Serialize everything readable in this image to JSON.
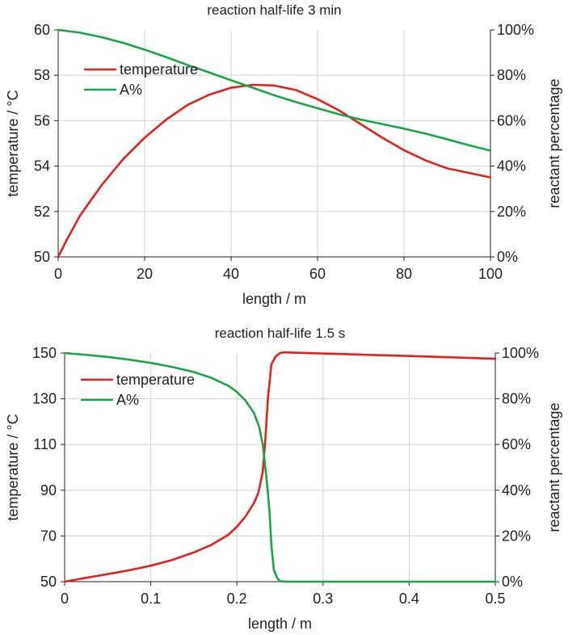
{
  "chart_data": [
    {
      "type": "line",
      "title": "reaction half-life 3 min",
      "xlabel": "length / m",
      "ylabel": "temperature / °C",
      "y2label": "reactant percentage",
      "xlim": [
        0,
        100
      ],
      "ylim": [
        50,
        60
      ],
      "y2lim": [
        0,
        100
      ],
      "xticks": [
        "0",
        "20",
        "40",
        "60",
        "80",
        "100"
      ],
      "yticks": [
        "50",
        "52",
        "54",
        "56",
        "58",
        "60"
      ],
      "y2ticks": [
        "0%",
        "20%",
        "40%",
        "60%",
        "80%",
        "100%"
      ],
      "xtick_values": [
        0,
        20,
        40,
        60,
        80,
        100
      ],
      "ytick_values": [
        50,
        52,
        54,
        56,
        58,
        60
      ],
      "y2tick_values": [
        0,
        20,
        40,
        60,
        80,
        100
      ],
      "grid": true,
      "legend_position": "top-left",
      "series": [
        {
          "name": "temperature",
          "axis": "left",
          "color": "#e3211d",
          "x": [
            0,
            2,
            5,
            10,
            15,
            20,
            25,
            30,
            35,
            40,
            45,
            50,
            55,
            60,
            65,
            70,
            75,
            80,
            85,
            90,
            95,
            100
          ],
          "y": [
            50.0,
            50.75,
            51.8,
            53.15,
            54.3,
            55.25,
            56.05,
            56.7,
            57.15,
            57.45,
            57.58,
            57.55,
            57.35,
            56.95,
            56.45,
            55.85,
            55.25,
            54.7,
            54.25,
            53.9,
            53.7,
            53.5
          ]
        },
        {
          "name": "A%",
          "axis": "right",
          "color": "#1aa544",
          "x": [
            0,
            5,
            10,
            15,
            20,
            25,
            30,
            35,
            40,
            45,
            50,
            55,
            60,
            65,
            70,
            75,
            80,
            85,
            90,
            95,
            100
          ],
          "y": [
            100,
            98.8,
            96.8,
            94.3,
            91.3,
            88.0,
            84.5,
            81.2,
            77.8,
            74.5,
            71.2,
            68.2,
            65.5,
            62.8,
            60.5,
            58.5,
            56.5,
            54.3,
            51.8,
            49.2,
            46.8
          ]
        }
      ]
    },
    {
      "type": "line",
      "title": "reaction half-life 1.5 s",
      "xlabel": "length / m",
      "ylabel": "temperature / °C",
      "y2label": "reactant percentage",
      "xlim": [
        0,
        0.5
      ],
      "ylim": [
        50,
        150
      ],
      "y2lim": [
        0,
        100
      ],
      "xticks": [
        "0",
        "0.1",
        "0.2",
        "0.3",
        "0.4",
        "0.5"
      ],
      "yticks": [
        "50",
        "70",
        "90",
        "110",
        "130",
        "150"
      ],
      "y2ticks": [
        "0%",
        "20%",
        "40%",
        "60%",
        "80%",
        "100%"
      ],
      "xtick_values": [
        0,
        0.1,
        0.2,
        0.3,
        0.4,
        0.5
      ],
      "ytick_values": [
        50,
        70,
        90,
        110,
        130,
        150
      ],
      "y2tick_values": [
        0,
        20,
        40,
        60,
        80,
        100
      ],
      "grid": true,
      "legend_position": "top-left",
      "series": [
        {
          "name": "temperature",
          "axis": "left",
          "color": "#e3211d",
          "x": [
            0,
            0.025,
            0.05,
            0.075,
            0.1,
            0.125,
            0.15,
            0.17,
            0.19,
            0.2,
            0.21,
            0.22,
            0.225,
            0.23,
            0.233,
            0.236,
            0.24,
            0.245,
            0.25,
            0.255,
            0.3,
            0.4,
            0.5
          ],
          "y": [
            50,
            51.7,
            53.3,
            55,
            57,
            59.5,
            62.8,
            66,
            70.5,
            74,
            78.5,
            84.5,
            89,
            98,
            112,
            130,
            145,
            148.5,
            150,
            150.3,
            149.8,
            148.7,
            147.5
          ]
        },
        {
          "name": "A%",
          "axis": "right",
          "color": "#1aa544",
          "x": [
            0,
            0.025,
            0.05,
            0.075,
            0.1,
            0.125,
            0.15,
            0.17,
            0.19,
            0.2,
            0.21,
            0.22,
            0.226,
            0.23,
            0.233,
            0.236,
            0.238,
            0.24,
            0.243,
            0.247,
            0.25,
            0.26,
            0.3,
            0.4,
            0.5
          ],
          "y": [
            100,
            99.2,
            98.3,
            97.1,
            95.7,
            93.9,
            91.7,
            89.2,
            85.7,
            83,
            79.2,
            73.7,
            67.5,
            60,
            50,
            39,
            30,
            16,
            5,
            1.5,
            0.2,
            0,
            0,
            0,
            0
          ]
        }
      ]
    }
  ]
}
